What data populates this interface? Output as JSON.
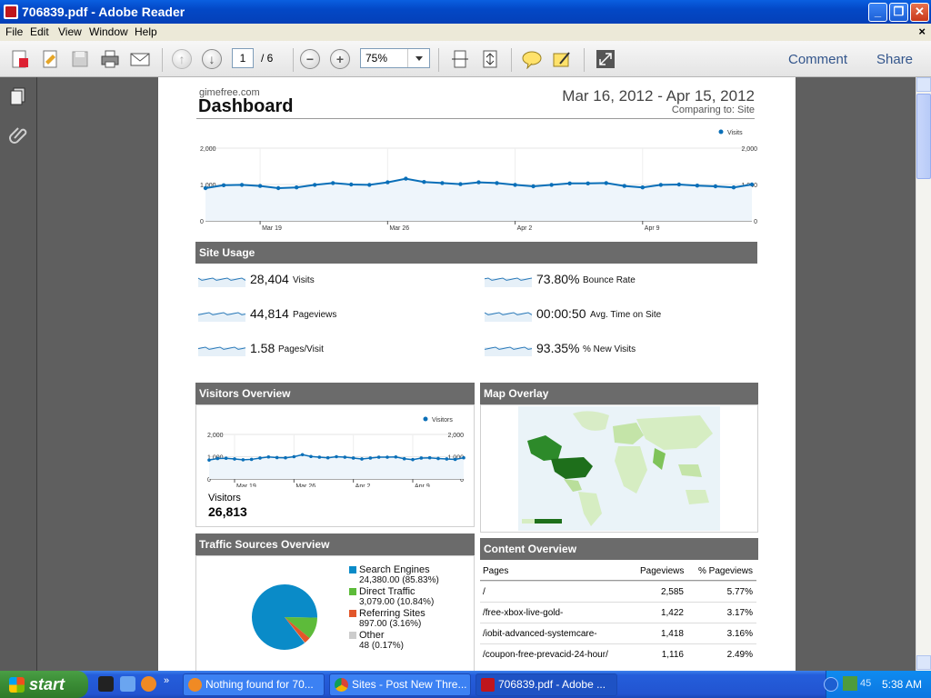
{
  "window": {
    "title": "706839.pdf - Adobe Reader"
  },
  "menu": [
    "File",
    "Edit",
    "View",
    "Window",
    "Help"
  ],
  "toolbar": {
    "page_current": "1",
    "page_total": "/ 6",
    "zoom": "75%",
    "comment": "Comment",
    "share": "Share"
  },
  "dashboard": {
    "site": "gimefree.com",
    "title": "Dashboard",
    "date_range": "Mar 16, 2012 - Apr 15, 2012",
    "comparing": "Comparing to: Site",
    "main_chart": {
      "legend": "Visits",
      "y_left": [
        "2,000",
        "1,000",
        "0"
      ],
      "y_right": [
        "2,000",
        "1,000",
        "0"
      ],
      "x_ticks": [
        "Mar 19",
        "Mar 26",
        "Apr 2",
        "Apr 9"
      ]
    }
  },
  "site_usage": {
    "header": "Site Usage",
    "metrics": [
      {
        "value": "28,404",
        "label": "Visits"
      },
      {
        "value": "44,814",
        "label": "Pageviews"
      },
      {
        "value": "1.58",
        "label": "Pages/Visit"
      },
      {
        "value": "73.80%",
        "label": "Bounce Rate"
      },
      {
        "value": "00:00:50",
        "label": "Avg. Time on Site"
      },
      {
        "value": "93.35%",
        "label": "% New Visits"
      }
    ]
  },
  "visitors_overview": {
    "header": "Visitors Overview",
    "legend": "Visitors",
    "y_left": [
      "2,000",
      "1,000",
      "0"
    ],
    "y_right": [
      "2,000",
      "1,000",
      "0"
    ],
    "x_ticks": [
      "Mar 19",
      "Mar 26",
      "Apr 2",
      "Apr 9"
    ],
    "label": "Visitors",
    "value": "26,813"
  },
  "map_overlay": {
    "header": "Map Overlay"
  },
  "traffic_sources": {
    "header": "Traffic Sources Overview",
    "sources": [
      {
        "name": "Search Engines",
        "value": "24,380.00 (85.83%)",
        "color": "#0a8bc8"
      },
      {
        "name": "Direct Traffic",
        "value": "3,079.00 (10.84%)",
        "color": "#5dbb3a"
      },
      {
        "name": "Referring Sites",
        "value": "897.00 (3.16%)",
        "color": "#e2562a"
      },
      {
        "name": "Other",
        "value": "48 (0.17%)",
        "color": "#cccccc"
      }
    ]
  },
  "content_overview": {
    "header": "Content Overview",
    "columns": [
      "Pages",
      "Pageviews",
      "% Pageviews"
    ],
    "rows": [
      {
        "page": "/",
        "pageviews": "2,585",
        "pct": "5.77%"
      },
      {
        "page": "/free-xbox-live-gold-",
        "pageviews": "1,422",
        "pct": "3.17%"
      },
      {
        "page": "/iobit-advanced-systemcare-",
        "pageviews": "1,418",
        "pct": "3.16%"
      },
      {
        "page": "/coupon-free-prevacid-24-hour/",
        "pageviews": "1,116",
        "pct": "2.49%"
      }
    ]
  },
  "chart_data": [
    {
      "type": "line",
      "legend": [
        "Visits"
      ],
      "x": [
        "Mar 16",
        "Mar 17",
        "Mar 18",
        "Mar 19",
        "Mar 20",
        "Mar 21",
        "Mar 22",
        "Mar 23",
        "Mar 24",
        "Mar 25",
        "Mar 26",
        "Mar 27",
        "Mar 28",
        "Mar 29",
        "Mar 30",
        "Mar 31",
        "Apr 1",
        "Apr 2",
        "Apr 3",
        "Apr 4",
        "Apr 5",
        "Apr 6",
        "Apr 7",
        "Apr 8",
        "Apr 9",
        "Apr 10",
        "Apr 11",
        "Apr 12",
        "Apr 13",
        "Apr 14",
        "Apr 15"
      ],
      "series": [
        {
          "name": "Visits",
          "values": [
            900,
            980,
            990,
            960,
            900,
            920,
            990,
            1040,
            1000,
            990,
            1060,
            1160,
            1070,
            1040,
            1010,
            1060,
            1040,
            990,
            950,
            990,
            1030,
            1030,
            1040,
            960,
            920,
            990,
            1000,
            970,
            950,
            920,
            1000
          ]
        }
      ],
      "ylim": [
        0,
        2000
      ],
      "grid": true,
      "legend_position": "top-right"
    },
    {
      "type": "line",
      "legend": [
        "Visitors"
      ],
      "x": [
        "Mar 16",
        "Mar 17",
        "Mar 18",
        "Mar 19",
        "Mar 20",
        "Mar 21",
        "Mar 22",
        "Mar 23",
        "Mar 24",
        "Mar 25",
        "Mar 26",
        "Mar 27",
        "Mar 28",
        "Mar 29",
        "Mar 30",
        "Mar 31",
        "Apr 1",
        "Apr 2",
        "Apr 3",
        "Apr 4",
        "Apr 5",
        "Apr 6",
        "Apr 7",
        "Apr 8",
        "Apr 9",
        "Apr 10",
        "Apr 11",
        "Apr 12",
        "Apr 13",
        "Apr 14",
        "Apr 15"
      ],
      "series": [
        {
          "name": "Visitors",
          "values": [
            850,
            920,
            930,
            900,
            860,
            880,
            940,
            990,
            960,
            950,
            1000,
            1090,
            1010,
            980,
            950,
            1000,
            980,
            940,
            900,
            940,
            980,
            980,
            990,
            910,
            870,
            940,
            950,
            920,
            900,
            880,
            950
          ]
        }
      ],
      "ylim": [
        0,
        2000
      ],
      "grid": true,
      "legend_position": "top-right"
    },
    {
      "type": "pie",
      "categories": [
        "Search Engines",
        "Direct Traffic",
        "Referring Sites",
        "Other"
      ],
      "values": [
        85.83,
        10.84,
        3.16,
        0.17
      ]
    }
  ]
}
